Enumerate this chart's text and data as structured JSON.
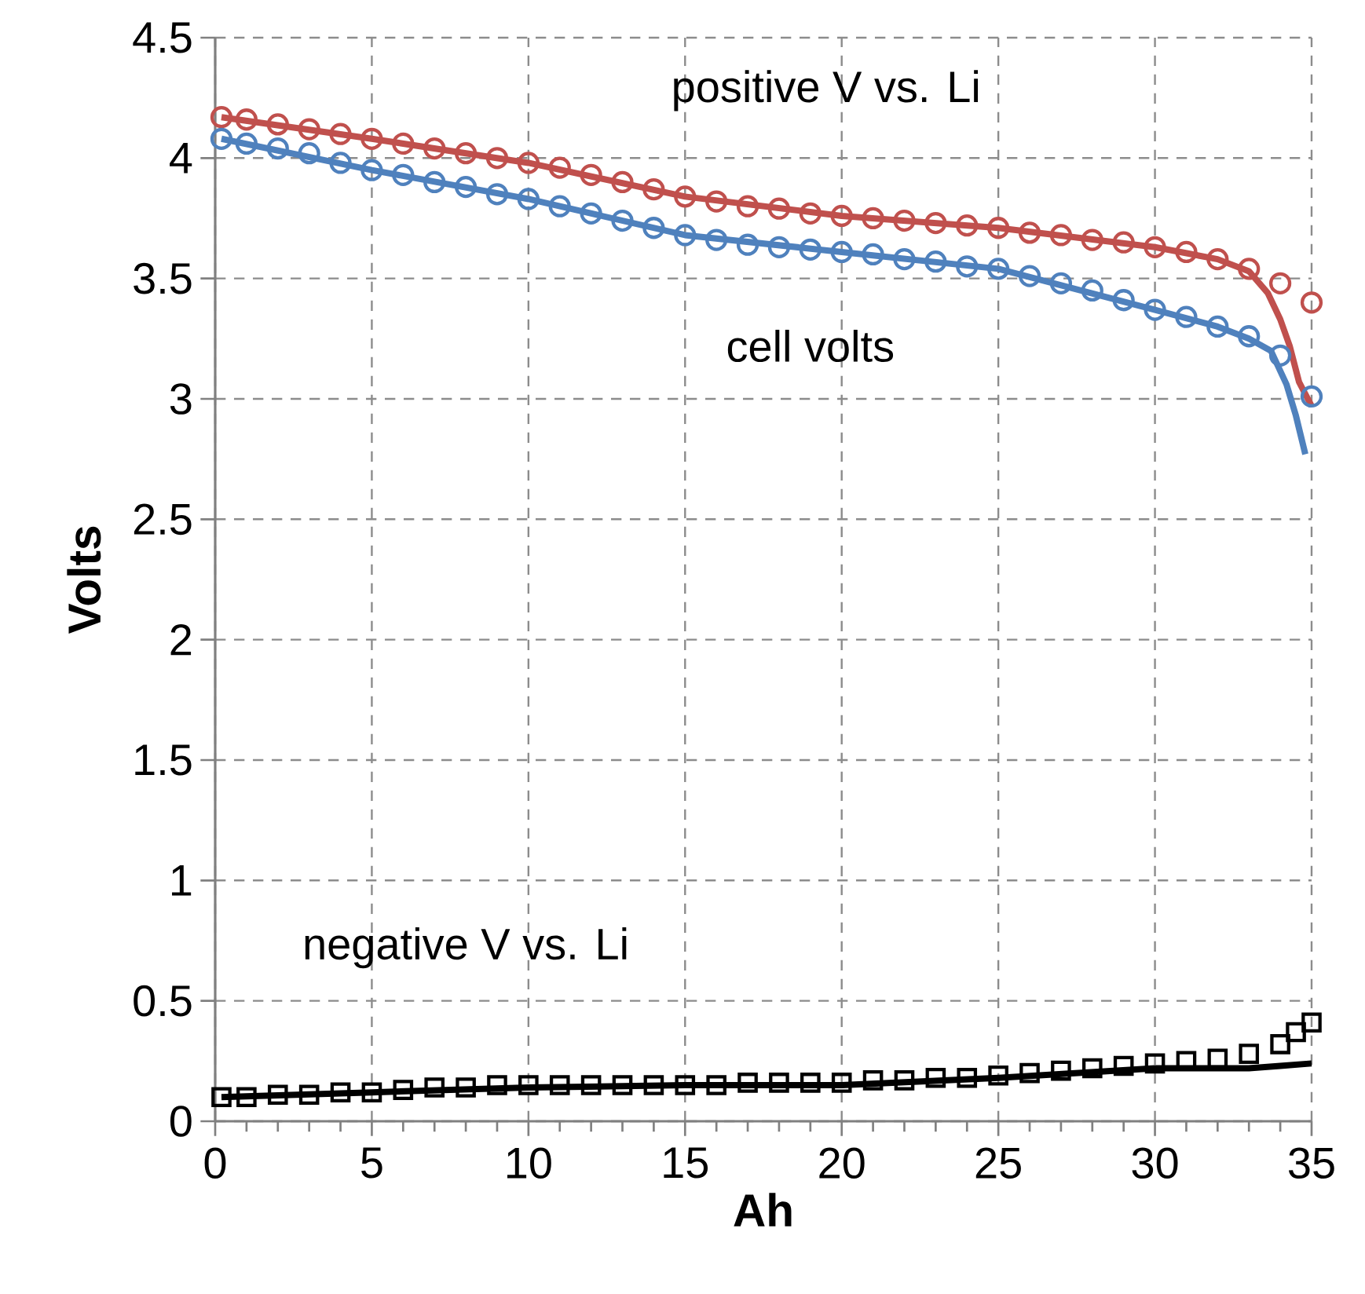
{
  "chart_data": {
    "type": "line",
    "xlabel": "Ah",
    "ylabel": "Volts",
    "xlim": [
      0,
      35
    ],
    "xticks": [
      0,
      5,
      10,
      15,
      20,
      25,
      30,
      35
    ],
    "ylim": [
      0,
      4.5
    ],
    "yticks": [
      0,
      0.5,
      1,
      1.5,
      2,
      2.5,
      3,
      3.5,
      4,
      4.5
    ],
    "grid": true,
    "legend": false,
    "series": [
      {
        "name": "positive V vs. Li",
        "type": "scatter",
        "marker": "circle",
        "color": "#c0504d",
        "x": [
          0.2,
          1,
          2,
          3,
          4,
          5,
          6,
          7,
          8,
          9,
          10,
          11,
          12,
          13,
          14,
          15,
          16,
          17,
          18,
          19,
          20,
          21,
          22,
          23,
          24,
          25,
          26,
          27,
          28,
          29,
          30,
          31,
          32,
          33,
          34,
          35
        ],
        "values": [
          4.17,
          4.16,
          4.14,
          4.12,
          4.1,
          4.08,
          4.06,
          4.04,
          4.02,
          4.0,
          3.98,
          3.96,
          3.93,
          3.9,
          3.87,
          3.84,
          3.82,
          3.8,
          3.79,
          3.77,
          3.76,
          3.75,
          3.74,
          3.73,
          3.72,
          3.71,
          3.69,
          3.68,
          3.66,
          3.65,
          3.63,
          3.61,
          3.58,
          3.54,
          3.48,
          3.4
        ]
      },
      {
        "marker": "none",
        "color": "#c0504d",
        "x": [
          0.2,
          5,
          10,
          15,
          20,
          25,
          30,
          32,
          33,
          33.6,
          34,
          34.3,
          34.6,
          35
        ],
        "values": [
          4.17,
          4.08,
          3.98,
          3.84,
          3.76,
          3.71,
          3.63,
          3.58,
          3.53,
          3.44,
          3.33,
          3.22,
          3.07,
          2.97
        ]
      },
      {
        "name": "cell volts",
        "type": "scatter",
        "marker": "circle",
        "color": "#4f81bd",
        "x": [
          0.2,
          1,
          2,
          3,
          4,
          5,
          6,
          7,
          8,
          9,
          10,
          11,
          12,
          13,
          14,
          15,
          16,
          17,
          18,
          19,
          20,
          21,
          22,
          23,
          24,
          25,
          26,
          27,
          28,
          29,
          30,
          31,
          32,
          33,
          34,
          35
        ],
        "values": [
          4.08,
          4.06,
          4.04,
          4.02,
          3.98,
          3.95,
          3.93,
          3.9,
          3.88,
          3.85,
          3.83,
          3.8,
          3.77,
          3.74,
          3.71,
          3.68,
          3.66,
          3.64,
          3.63,
          3.62,
          3.61,
          3.6,
          3.58,
          3.57,
          3.55,
          3.54,
          3.51,
          3.48,
          3.45,
          3.41,
          3.37,
          3.34,
          3.3,
          3.26,
          3.18,
          3.01
        ]
      },
      {
        "marker": "none",
        "color": "#4f81bd",
        "x": [
          0.2,
          5,
          10,
          15,
          20,
          25,
          30,
          32,
          33,
          33.7,
          34.2,
          34.5,
          34.8
        ],
        "values": [
          4.08,
          3.95,
          3.83,
          3.68,
          3.61,
          3.54,
          3.37,
          3.3,
          3.25,
          3.2,
          3.06,
          2.93,
          2.77
        ]
      },
      {
        "name": "negative V vs. Li",
        "type": "scatter",
        "marker": "square",
        "color": "#000000",
        "x": [
          0.2,
          1,
          2,
          3,
          4,
          5,
          6,
          7,
          8,
          9,
          10,
          11,
          12,
          13,
          14,
          15,
          16,
          17,
          18,
          19,
          20,
          21,
          22,
          23,
          24,
          25,
          26,
          27,
          28,
          29,
          30,
          31,
          32,
          33,
          34,
          34.5,
          35
        ],
        "values": [
          0.1,
          0.1,
          0.11,
          0.11,
          0.12,
          0.12,
          0.13,
          0.14,
          0.14,
          0.15,
          0.15,
          0.15,
          0.15,
          0.15,
          0.15,
          0.15,
          0.15,
          0.16,
          0.16,
          0.16,
          0.16,
          0.17,
          0.17,
          0.18,
          0.18,
          0.19,
          0.2,
          0.21,
          0.22,
          0.23,
          0.24,
          0.25,
          0.26,
          0.28,
          0.32,
          0.37,
          0.41
        ]
      },
      {
        "marker": "none",
        "color": "#000000",
        "x": [
          0.2,
          5,
          10,
          15,
          20,
          25,
          30,
          33,
          34,
          35
        ],
        "values": [
          0.1,
          0.12,
          0.14,
          0.15,
          0.15,
          0.18,
          0.22,
          0.22,
          0.23,
          0.24
        ]
      }
    ]
  }
}
